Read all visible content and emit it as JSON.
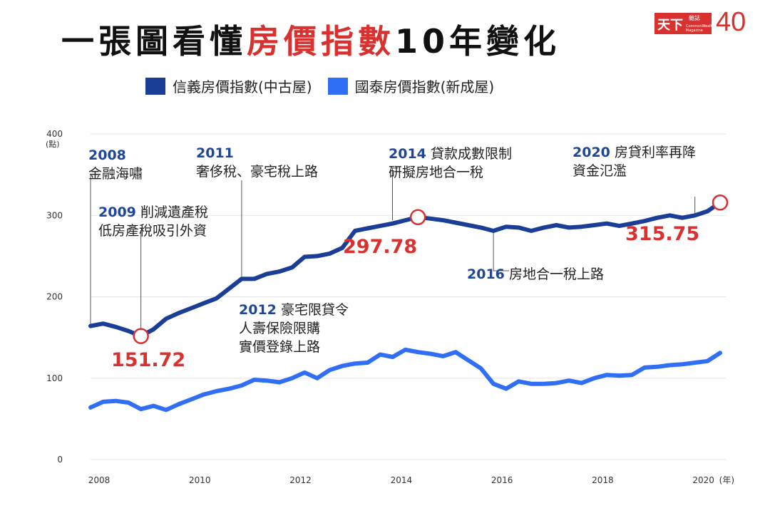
{
  "title": {
    "part1": "一張圖看懂",
    "highlight": "房價指數",
    "part2": "10年變化"
  },
  "logo": {
    "mark": "天下",
    "sub": "雜誌",
    "english": "CommonWealth Magazine",
    "anniversary": "40"
  },
  "legend": [
    {
      "label": "信義房價指數(中古屋)",
      "color": "#1a3e96"
    },
    {
      "label": "國泰房價指數(新成屋)",
      "color": "#2f6ef5"
    }
  ],
  "annotations": [
    {
      "year": "2008",
      "text": [
        "金融海嘯"
      ]
    },
    {
      "year": "2009",
      "text": [
        "削減遺產稅",
        "低房產稅吸引外資"
      ]
    },
    {
      "year": "2011",
      "text": [
        "奢侈稅、豪宅稅上路"
      ]
    },
    {
      "year": "2012",
      "text": [
        "豪宅限貸令",
        "人壽保險限購",
        "實價登錄上路"
      ]
    },
    {
      "year": "2014",
      "text": [
        "貸款成數限制",
        "研擬房地合一稅"
      ]
    },
    {
      "year": "2016",
      "text": [
        "房地合一稅上路"
      ]
    },
    {
      "year": "2020",
      "text": [
        "房貸利率再降",
        "資金氾濫"
      ]
    }
  ],
  "highlights": [
    "151.72",
    "297.78",
    "315.75"
  ],
  "chart_data": {
    "type": "line",
    "title": "一張圖看懂房價指數10年變化",
    "xlabel": "(年)",
    "ylabel": "(點)",
    "ylim": [
      0,
      400
    ],
    "xlim": [
      2008,
      2022
    ],
    "yticks": [
      0,
      100,
      200,
      300,
      400
    ],
    "xticks": [
      2008,
      2010,
      2012,
      2014,
      2016,
      2018,
      2020
    ],
    "xtick_labels": [
      "2008",
      "2010",
      "2012",
      "2014",
      "2016",
      "2018",
      "2020"
    ],
    "series": [
      {
        "name": "信義房價指數(中古屋)",
        "color": "#1a3e96",
        "x": [
          2008.0,
          2008.25,
          2008.5,
          2008.75,
          2009.0,
          2009.25,
          2009.5,
          2009.75,
          2010.0,
          2010.25,
          2010.5,
          2010.75,
          2011.0,
          2011.25,
          2011.5,
          2011.75,
          2012.0,
          2012.25,
          2012.5,
          2012.75,
          2013.0,
          2013.25,
          2013.5,
          2013.75,
          2014.0,
          2014.25,
          2014.5,
          2014.75,
          2015.0,
          2015.25,
          2015.5,
          2015.75,
          2016.0,
          2016.25,
          2016.5,
          2016.75,
          2017.0,
          2017.25,
          2017.5,
          2017.75,
          2018.0,
          2018.25,
          2018.5,
          2018.75,
          2019.0,
          2019.25,
          2019.5,
          2019.75,
          2020.0,
          2020.25,
          2020.5
        ],
        "values": [
          164,
          167,
          163,
          158,
          151.72,
          160,
          173,
          180,
          186,
          192,
          198,
          210,
          222,
          222,
          228,
          231,
          236,
          249,
          250,
          253,
          260,
          281,
          284,
          287,
          290,
          294,
          297.78,
          296,
          294,
          291,
          288,
          285,
          281,
          286,
          285,
          281,
          285,
          288,
          285,
          286,
          288,
          290,
          287,
          290,
          293,
          297,
          300,
          297,
          300,
          305,
          315.75
        ]
      },
      {
        "name": "國泰房價指數(新成屋)",
        "color": "#2f6ef5",
        "x": [
          2008.0,
          2008.25,
          2008.5,
          2008.75,
          2009.0,
          2009.25,
          2009.5,
          2009.75,
          2010.0,
          2010.25,
          2010.5,
          2010.75,
          2011.0,
          2011.25,
          2011.5,
          2011.75,
          2012.0,
          2012.25,
          2012.5,
          2012.75,
          2013.0,
          2013.25,
          2013.5,
          2013.75,
          2014.0,
          2014.25,
          2014.5,
          2014.75,
          2015.0,
          2015.25,
          2015.5,
          2015.75,
          2016.0,
          2016.25,
          2016.5,
          2016.75,
          2017.0,
          2017.25,
          2017.5,
          2017.75,
          2018.0,
          2018.25,
          2018.5,
          2018.75,
          2019.0,
          2019.25,
          2019.5,
          2019.75,
          2020.0,
          2020.25,
          2020.5
        ],
        "values": [
          64,
          71,
          72,
          70,
          62,
          66,
          61,
          68,
          74,
          80,
          84,
          87,
          91,
          98,
          97,
          95,
          100,
          107,
          100,
          110,
          115,
          118,
          119,
          129,
          126,
          135,
          132,
          130,
          127,
          132,
          122,
          112,
          93,
          87,
          96,
          93,
          93,
          94,
          97,
          94,
          100,
          104,
          103,
          104,
          113,
          114,
          116,
          117,
          119,
          121,
          131
        ]
      }
    ]
  }
}
